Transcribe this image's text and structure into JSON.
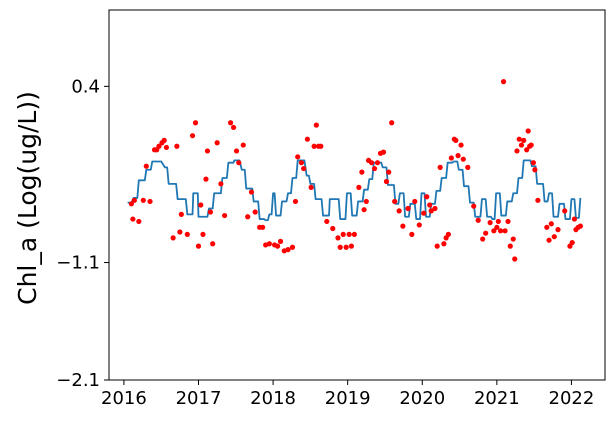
{
  "chart_data": {
    "type": "line",
    "title": "",
    "xlabel": "",
    "ylabel": "Chl_a (Log(ug/L))",
    "xlim": [
      2015.8,
      2022.45
    ],
    "ylim": [
      -2.1,
      1.05
    ],
    "xticks": [
      2016,
      2017,
      2018,
      2019,
      2020,
      2021,
      2022
    ],
    "xtick_labels": [
      "2016",
      "2017",
      "2018",
      "2019",
      "2020",
      "2021",
      "2022"
    ],
    "yticks": [
      -2.1,
      -1.1,
      0.4
    ],
    "ytick_labels": [
      "−2.1",
      "−1.1",
      "0.4"
    ],
    "grid": false,
    "legend": "none",
    "series": [
      {
        "type": "line",
        "color": "#1f77b4",
        "points": [
          [
            2016.05,
            -0.59
          ],
          [
            2016.1,
            -0.59
          ],
          [
            2016.13,
            -0.55
          ],
          [
            2016.18,
            -0.55
          ],
          [
            2016.2,
            -0.4
          ],
          [
            2016.28,
            -0.4
          ],
          [
            2016.3,
            -0.31
          ],
          [
            2016.36,
            -0.31
          ],
          [
            2016.38,
            -0.24
          ],
          [
            2016.5,
            -0.24
          ],
          [
            2016.55,
            -0.29
          ],
          [
            2016.58,
            -0.29
          ],
          [
            2016.6,
            -0.43
          ],
          [
            2016.7,
            -0.43
          ],
          [
            2016.72,
            -0.56
          ],
          [
            2016.83,
            -0.56
          ],
          [
            2016.85,
            -0.69
          ],
          [
            2016.92,
            -0.69
          ],
          [
            2016.93,
            -0.51
          ],
          [
            2016.99,
            -0.51
          ],
          [
            2017.0,
            -0.71
          ],
          [
            2017.12,
            -0.71
          ],
          [
            2017.14,
            -0.64
          ],
          [
            2017.19,
            -0.64
          ],
          [
            2017.21,
            -0.51
          ],
          [
            2017.3,
            -0.51
          ],
          [
            2017.32,
            -0.38
          ],
          [
            2017.38,
            -0.38
          ],
          [
            2017.4,
            -0.25
          ],
          [
            2017.47,
            -0.25
          ],
          [
            2017.48,
            -0.23
          ],
          [
            2017.55,
            -0.23
          ],
          [
            2017.58,
            -0.31
          ],
          [
            2017.62,
            -0.31
          ],
          [
            2017.64,
            -0.47
          ],
          [
            2017.72,
            -0.47
          ],
          [
            2017.74,
            -0.58
          ],
          [
            2017.8,
            -0.58
          ],
          [
            2017.82,
            -0.73
          ],
          [
            2017.88,
            -0.73
          ],
          [
            2017.9,
            -0.74
          ],
          [
            2017.93,
            -0.74
          ],
          [
            2017.95,
            -0.69
          ],
          [
            2017.98,
            -0.69
          ],
          [
            2018.0,
            -0.51
          ],
          [
            2018.02,
            -0.51
          ],
          [
            2018.04,
            -0.7
          ],
          [
            2018.1,
            -0.7
          ],
          [
            2018.12,
            -0.58
          ],
          [
            2018.18,
            -0.58
          ],
          [
            2018.2,
            -0.51
          ],
          [
            2018.24,
            -0.51
          ],
          [
            2018.26,
            -0.38
          ],
          [
            2018.31,
            -0.38
          ],
          [
            2018.33,
            -0.23
          ],
          [
            2018.42,
            -0.23
          ],
          [
            2018.45,
            -0.36
          ],
          [
            2018.48,
            -0.36
          ],
          [
            2018.5,
            -0.43
          ],
          [
            2018.55,
            -0.43
          ],
          [
            2018.57,
            -0.56
          ],
          [
            2018.65,
            -0.56
          ],
          [
            2018.67,
            -0.7
          ],
          [
            2018.75,
            -0.7
          ],
          [
            2018.76,
            -0.56
          ],
          [
            2018.81,
            -0.56
          ],
          [
            2018.83,
            -0.56
          ],
          [
            2018.88,
            -0.56
          ],
          [
            2018.9,
            -0.73
          ],
          [
            2018.97,
            -0.73
          ],
          [
            2018.99,
            -0.51
          ],
          [
            2019.04,
            -0.51
          ],
          [
            2019.06,
            -0.7
          ],
          [
            2019.12,
            -0.7
          ],
          [
            2019.14,
            -0.58
          ],
          [
            2019.2,
            -0.58
          ],
          [
            2019.22,
            -0.48
          ],
          [
            2019.27,
            -0.48
          ],
          [
            2019.29,
            -0.39
          ],
          [
            2019.33,
            -0.39
          ],
          [
            2019.35,
            -0.25
          ],
          [
            2019.45,
            -0.25
          ],
          [
            2019.47,
            -0.29
          ],
          [
            2019.52,
            -0.29
          ],
          [
            2019.54,
            -0.44
          ],
          [
            2019.62,
            -0.44
          ],
          [
            2019.64,
            -0.6
          ],
          [
            2019.68,
            -0.6
          ],
          [
            2019.7,
            -0.51
          ],
          [
            2019.75,
            -0.51
          ],
          [
            2019.77,
            -0.71
          ],
          [
            2019.82,
            -0.71
          ],
          [
            2019.84,
            -0.6
          ],
          [
            2019.9,
            -0.6
          ],
          [
            2019.92,
            -0.73
          ],
          [
            2019.97,
            -0.73
          ],
          [
            2019.99,
            -0.51
          ],
          [
            2020.03,
            -0.51
          ],
          [
            2020.05,
            -0.71
          ],
          [
            2020.1,
            -0.71
          ],
          [
            2020.12,
            -0.6
          ],
          [
            2020.17,
            -0.6
          ],
          [
            2020.19,
            -0.49
          ],
          [
            2020.24,
            -0.49
          ],
          [
            2020.26,
            -0.38
          ],
          [
            2020.32,
            -0.38
          ],
          [
            2020.34,
            -0.25
          ],
          [
            2020.4,
            -0.25
          ],
          [
            2020.42,
            -0.24
          ],
          [
            2020.47,
            -0.24
          ],
          [
            2020.49,
            -0.31
          ],
          [
            2020.54,
            -0.31
          ],
          [
            2020.56,
            -0.45
          ],
          [
            2020.62,
            -0.45
          ],
          [
            2020.64,
            -0.59
          ],
          [
            2020.69,
            -0.59
          ],
          [
            2020.71,
            -0.71
          ],
          [
            2020.78,
            -0.71
          ],
          [
            2020.8,
            -0.56
          ],
          [
            2020.85,
            -0.56
          ],
          [
            2020.87,
            -0.71
          ],
          [
            2020.92,
            -0.71
          ],
          [
            2020.94,
            -0.73
          ],
          [
            2020.97,
            -0.73
          ],
          [
            2020.99,
            -0.51
          ],
          [
            2021.04,
            -0.51
          ],
          [
            2021.06,
            -0.7
          ],
          [
            2021.12,
            -0.7
          ],
          [
            2021.14,
            -0.58
          ],
          [
            2021.2,
            -0.58
          ],
          [
            2021.22,
            -0.51
          ],
          [
            2021.27,
            -0.51
          ],
          [
            2021.29,
            -0.38
          ],
          [
            2021.34,
            -0.38
          ],
          [
            2021.36,
            -0.23
          ],
          [
            2021.45,
            -0.23
          ],
          [
            2021.47,
            -0.28
          ],
          [
            2021.52,
            -0.28
          ],
          [
            2021.54,
            -0.43
          ],
          [
            2021.62,
            -0.43
          ],
          [
            2021.64,
            -0.58
          ],
          [
            2021.68,
            -0.58
          ],
          [
            2021.7,
            -0.51
          ],
          [
            2021.74,
            -0.51
          ],
          [
            2021.76,
            -0.71
          ],
          [
            2021.82,
            -0.71
          ],
          [
            2021.84,
            -0.6
          ],
          [
            2021.9,
            -0.6
          ],
          [
            2021.92,
            -0.73
          ],
          [
            2021.98,
            -0.73
          ],
          [
            2022.0,
            -0.56
          ],
          [
            2022.04,
            -0.56
          ],
          [
            2022.06,
            -0.72
          ],
          [
            2022.1,
            -0.72
          ],
          [
            2022.12,
            -0.55
          ]
        ]
      },
      {
        "type": "scatter",
        "color": "#ff0000",
        "points": [
          [
            2016.1,
            -0.6
          ],
          [
            2016.12,
            -0.73
          ],
          [
            2016.14,
            -0.57
          ],
          [
            2016.2,
            -0.75
          ],
          [
            2016.26,
            -0.57
          ],
          [
            2016.3,
            -0.28
          ],
          [
            2016.35,
            -0.58
          ],
          [
            2016.41,
            -0.14
          ],
          [
            2016.44,
            -0.14
          ],
          [
            2016.47,
            -0.11
          ],
          [
            2016.51,
            -0.08
          ],
          [
            2016.54,
            -0.06
          ],
          [
            2016.57,
            -0.12
          ],
          [
            2016.66,
            -0.89
          ],
          [
            2016.71,
            -0.11
          ],
          [
            2016.75,
            -0.84
          ],
          [
            2016.77,
            -0.69
          ],
          [
            2016.85,
            -0.86
          ],
          [
            2016.92,
            -0.02
          ],
          [
            2016.96,
            0.09
          ],
          [
            2017.0,
            -0.96
          ],
          [
            2017.03,
            -0.61
          ],
          [
            2017.06,
            -0.86
          ],
          [
            2017.1,
            -0.39
          ],
          [
            2017.12,
            -0.15
          ],
          [
            2017.16,
            -0.67
          ],
          [
            2017.19,
            -0.94
          ],
          [
            2017.25,
            -0.08
          ],
          [
            2017.3,
            -0.43
          ],
          [
            2017.35,
            -0.7
          ],
          [
            2017.43,
            0.09
          ],
          [
            2017.47,
            0.05
          ],
          [
            2017.51,
            -0.15
          ],
          [
            2017.54,
            -0.25
          ],
          [
            2017.6,
            -0.1
          ],
          [
            2017.66,
            -0.71
          ],
          [
            2017.71,
            -0.5
          ],
          [
            2017.76,
            -0.67
          ],
          [
            2017.82,
            -0.8
          ],
          [
            2017.86,
            -0.8
          ],
          [
            2017.9,
            -0.95
          ],
          [
            2017.95,
            -0.94
          ],
          [
            2018.02,
            -0.95
          ],
          [
            2018.06,
            -0.96
          ],
          [
            2018.1,
            -0.92
          ],
          [
            2018.15,
            -1.0
          ],
          [
            2018.2,
            -0.99
          ],
          [
            2018.26,
            -0.97
          ],
          [
            2018.3,
            -0.58
          ],
          [
            2018.33,
            -0.2
          ],
          [
            2018.38,
            -0.25
          ],
          [
            2018.41,
            -0.3
          ],
          [
            2018.46,
            -0.05
          ],
          [
            2018.51,
            -0.46
          ],
          [
            2018.55,
            -0.11
          ],
          [
            2018.58,
            0.07
          ],
          [
            2018.61,
            -0.11
          ],
          [
            2018.64,
            -0.11
          ],
          [
            2018.72,
            -0.75
          ],
          [
            2018.8,
            -0.81
          ],
          [
            2018.87,
            -0.89
          ],
          [
            2018.9,
            -0.97
          ],
          [
            2018.94,
            -0.86
          ],
          [
            2018.98,
            -0.97
          ],
          [
            2019.02,
            -0.86
          ],
          [
            2019.05,
            -0.96
          ],
          [
            2019.09,
            -0.86
          ],
          [
            2019.15,
            -0.46
          ],
          [
            2019.19,
            -0.33
          ],
          [
            2019.22,
            -0.65
          ],
          [
            2019.25,
            -0.58
          ],
          [
            2019.28,
            -0.23
          ],
          [
            2019.32,
            -0.25
          ],
          [
            2019.36,
            -0.3
          ],
          [
            2019.4,
            -0.25
          ],
          [
            2019.44,
            -0.17
          ],
          [
            2019.48,
            -0.16
          ],
          [
            2019.52,
            -0.41
          ],
          [
            2019.55,
            -0.33
          ],
          [
            2019.59,
            0.09
          ],
          [
            2019.63,
            -0.58
          ],
          [
            2019.69,
            -0.66
          ],
          [
            2019.74,
            -0.79
          ],
          [
            2019.81,
            -0.64
          ],
          [
            2019.86,
            -0.86
          ],
          [
            2019.9,
            -0.58
          ],
          [
            2019.96,
            -0.78
          ],
          [
            2020.02,
            -0.68
          ],
          [
            2020.06,
            -0.54
          ],
          [
            2020.1,
            -0.61
          ],
          [
            2020.12,
            -0.66
          ],
          [
            2020.17,
            -0.64
          ],
          [
            2020.2,
            -0.96
          ],
          [
            2020.24,
            -0.29
          ],
          [
            2020.29,
            -0.94
          ],
          [
            2020.32,
            -0.89
          ],
          [
            2020.35,
            -0.86
          ],
          [
            2020.39,
            -0.21
          ],
          [
            2020.43,
            -0.05
          ],
          [
            2020.45,
            -0.06
          ],
          [
            2020.48,
            -0.19
          ],
          [
            2020.52,
            -0.1
          ],
          [
            2020.55,
            -0.22
          ],
          [
            2020.61,
            -0.29
          ],
          [
            2020.69,
            -0.62
          ],
          [
            2020.75,
            -0.74
          ],
          [
            2020.81,
            -0.9
          ],
          [
            2020.85,
            -0.85
          ],
          [
            2020.91,
            -0.76
          ],
          [
            2020.96,
            -0.83
          ],
          [
            2021.0,
            -0.8
          ],
          [
            2021.02,
            -0.75
          ],
          [
            2021.05,
            -0.83
          ],
          [
            2021.09,
            0.44
          ],
          [
            2021.11,
            -0.83
          ],
          [
            2021.15,
            -0.75
          ],
          [
            2021.18,
            -0.96
          ],
          [
            2021.22,
            -0.9
          ],
          [
            2021.24,
            -1.07
          ],
          [
            2021.27,
            -0.15
          ],
          [
            2021.3,
            -0.05
          ],
          [
            2021.33,
            -0.1
          ],
          [
            2021.36,
            -0.06
          ],
          [
            2021.4,
            -0.14
          ],
          [
            2021.42,
            0.02
          ],
          [
            2021.44,
            -0.11
          ],
          [
            2021.46,
            -0.1
          ],
          [
            2021.49,
            -0.25
          ],
          [
            2021.51,
            -0.31
          ],
          [
            2021.55,
            -0.57
          ],
          [
            2021.67,
            -0.8
          ],
          [
            2021.7,
            -0.91
          ],
          [
            2021.73,
            -0.77
          ],
          [
            2021.77,
            -0.88
          ],
          [
            2021.82,
            -0.82
          ],
          [
            2021.91,
            -0.66
          ],
          [
            2021.98,
            -0.96
          ],
          [
            2022.01,
            -0.93
          ],
          [
            2022.04,
            -0.73
          ],
          [
            2022.06,
            -0.82
          ],
          [
            2022.09,
            -0.8
          ],
          [
            2022.12,
            -0.79
          ]
        ]
      }
    ]
  }
}
